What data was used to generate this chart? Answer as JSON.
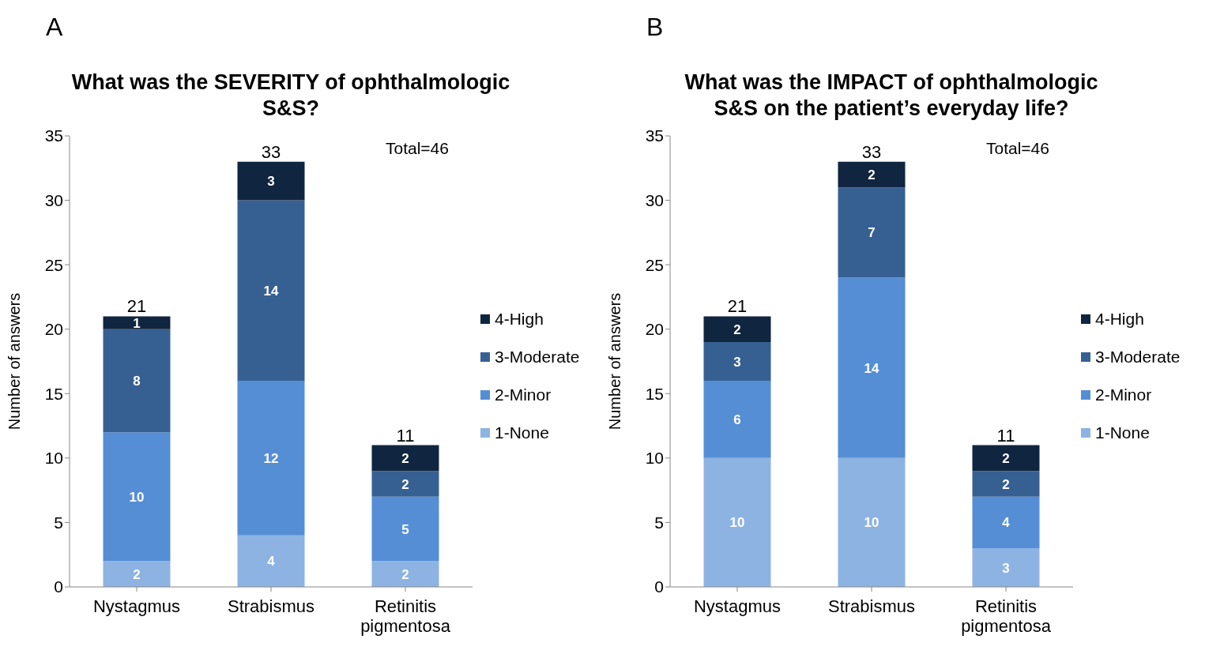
{
  "chart_data": [
    {
      "type": "bar",
      "stacked": true,
      "title": "What was the SEVERITY of ophthalmologic S&S?",
      "ylabel": "Number of answers",
      "categories": [
        "Nystagmus",
        "Strabismus",
        "Retinitis pigmentosa"
      ],
      "series": [
        {
          "name": "1-None",
          "color": "#8db3e2",
          "values": [
            2,
            4,
            2
          ]
        },
        {
          "name": "2-Minor",
          "color": "#558ed5",
          "values": [
            10,
            12,
            5
          ]
        },
        {
          "name": "3-Moderate",
          "color": "#376092",
          "values": [
            8,
            14,
            2
          ]
        },
        {
          "name": "4-High",
          "color": "#10253f",
          "values": [
            1,
            3,
            2
          ]
        }
      ],
      "totals": [
        "21",
        "33",
        "11"
      ],
      "data_labels": true,
      "ylim": [
        0,
        35
      ],
      "yticks": [
        0,
        5,
        10,
        15,
        20,
        25,
        30,
        35
      ],
      "legend": "right",
      "annotations": [
        "A",
        "Total=46"
      ]
    },
    {
      "type": "bar",
      "stacked": true,
      "title": "What was the IMPACT of ophthalmologic S&S on the patient’s everyday life?",
      "ylabel": "Number of answers",
      "categories": [
        "Nystagmus",
        "Strabismus",
        "Retinitis pigmentosa"
      ],
      "series": [
        {
          "name": "1-None",
          "color": "#8db3e2",
          "values": [
            10,
            10,
            3
          ]
        },
        {
          "name": "2-Minor",
          "color": "#558ed5",
          "values": [
            6,
            14,
            4
          ]
        },
        {
          "name": "3-Moderate",
          "color": "#376092",
          "values": [
            3,
            7,
            2
          ]
        },
        {
          "name": "4-High",
          "color": "#10253f",
          "values": [
            2,
            2,
            2
          ]
        }
      ],
      "totals": [
        "21",
        "33",
        "11"
      ],
      "data_labels": true,
      "ylim": [
        0,
        35
      ],
      "yticks": [
        0,
        5,
        10,
        15,
        20,
        25,
        30,
        35
      ],
      "legend": "right",
      "annotations": [
        "B",
        "Total=46"
      ]
    }
  ]
}
